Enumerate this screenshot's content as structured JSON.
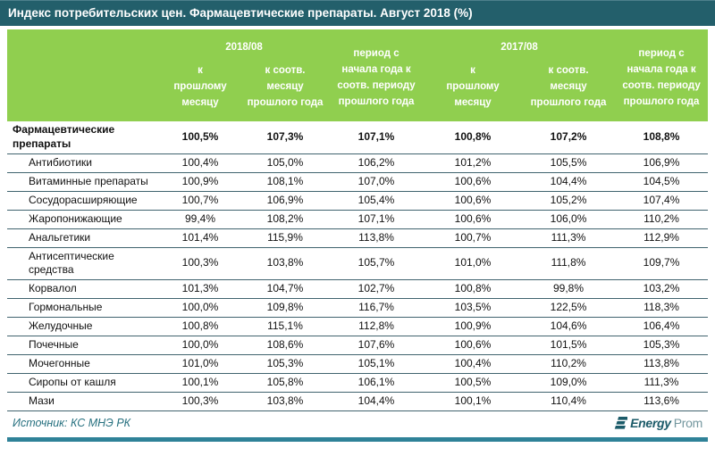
{
  "title": "Индекс потребительских цен. Фармацевтические препараты. Август 2018 (%)",
  "header": {
    "group_2018": "2018/08",
    "group_2017": "2017/08",
    "col_prev_month": "к\nпрошлому\nмесяцу",
    "col_same_month": "к соотв.\nмесяцу\nпрошлого года",
    "col_period": "период с\nначала года к\nсоотв. периоду\nпрошлого года"
  },
  "footer": {
    "source": "Источник: КС МНЭ РК",
    "logo_bold": "Energy",
    "logo_light": "Prom"
  },
  "colors": {
    "title_bar": "#235f6b",
    "header_green": "#90cf4f",
    "row_border": "#40636e",
    "source_text": "#26707f",
    "bottom_bar": "#2f8298",
    "logo_dark": "#1b5b69",
    "logo_light": "#74979f"
  },
  "chart_data": {
    "type": "table",
    "title": "Индекс потребительских цен. Фармацевтические препараты. Август 2018 (%)",
    "column_groups": [
      {
        "label": "2018/08",
        "span": 2
      },
      {
        "label": "период с начала года к соотв. периоду прошлого года",
        "span": 1
      },
      {
        "label": "2017/08",
        "span": 2
      },
      {
        "label": "период с начала года к соотв. периоду прошлого года",
        "span": 1
      }
    ],
    "columns": [
      "2018/08 к прошлому месяцу",
      "2018/08 к соотв. месяцу прошлого года",
      "2018 период с начала года к соотв. периоду прошлого года",
      "2017/08 к прошлому месяцу",
      "2017/08 к соотв. месяцу прошлого года",
      "2017 период с начала года к соотв. периоду прошлого года"
    ],
    "rows": [
      {
        "label": "Фармацевтические препараты",
        "bold": true,
        "indent": false,
        "values": [
          "100,5%",
          "107,3%",
          "107,1%",
          "100,8%",
          "107,2%",
          "108,8%"
        ]
      },
      {
        "label": "Антибиотики",
        "bold": false,
        "indent": true,
        "values": [
          "100,4%",
          "105,0%",
          "106,2%",
          "101,2%",
          "105,5%",
          "106,9%"
        ]
      },
      {
        "label": "Витаминные препараты",
        "bold": false,
        "indent": true,
        "values": [
          "100,9%",
          "108,1%",
          "107,0%",
          "100,6%",
          "104,4%",
          "104,5%"
        ]
      },
      {
        "label": "Сосудорасширяющие",
        "bold": false,
        "indent": true,
        "values": [
          "100,7%",
          "106,9%",
          "105,4%",
          "100,6%",
          "105,2%",
          "107,4%"
        ]
      },
      {
        "label": "Жаропонижающие",
        "bold": false,
        "indent": true,
        "values": [
          "99,4%",
          "108,2%",
          "107,1%",
          "100,6%",
          "106,0%",
          "110,2%"
        ]
      },
      {
        "label": "Анальгетики",
        "bold": false,
        "indent": true,
        "values": [
          "101,4%",
          "115,9%",
          "113,8%",
          "100,7%",
          "111,3%",
          "112,9%"
        ]
      },
      {
        "label": "Антисептические средства",
        "bold": false,
        "indent": true,
        "values": [
          "100,3%",
          "103,8%",
          "105,7%",
          "101,0%",
          "111,8%",
          "109,7%"
        ]
      },
      {
        "label": "Корвалол",
        "bold": false,
        "indent": true,
        "values": [
          "101,3%",
          "104,7%",
          "102,7%",
          "100,8%",
          "99,8%",
          "103,2%"
        ]
      },
      {
        "label": "Гормональные",
        "bold": false,
        "indent": true,
        "values": [
          "100,0%",
          "109,8%",
          "116,7%",
          "103,5%",
          "122,5%",
          "118,3%"
        ]
      },
      {
        "label": "Желудочные",
        "bold": false,
        "indent": true,
        "values": [
          "100,8%",
          "115,1%",
          "112,8%",
          "100,9%",
          "104,6%",
          "106,4%"
        ]
      },
      {
        "label": "Почечные",
        "bold": false,
        "indent": true,
        "values": [
          "100,0%",
          "108,6%",
          "107,6%",
          "100,6%",
          "101,5%",
          "105,3%"
        ]
      },
      {
        "label": "Мочегонные",
        "bold": false,
        "indent": true,
        "values": [
          "101,0%",
          "105,3%",
          "105,1%",
          "100,4%",
          "110,2%",
          "113,8%"
        ]
      },
      {
        "label": "Сиропы от кашля",
        "bold": false,
        "indent": true,
        "values": [
          "100,1%",
          "105,8%",
          "106,1%",
          "100,5%",
          "109,0%",
          "111,3%"
        ]
      },
      {
        "label": "Мази",
        "bold": false,
        "indent": true,
        "values": [
          "100,3%",
          "103,8%",
          "104,4%",
          "100,1%",
          "110,4%",
          "113,6%"
        ]
      }
    ]
  }
}
